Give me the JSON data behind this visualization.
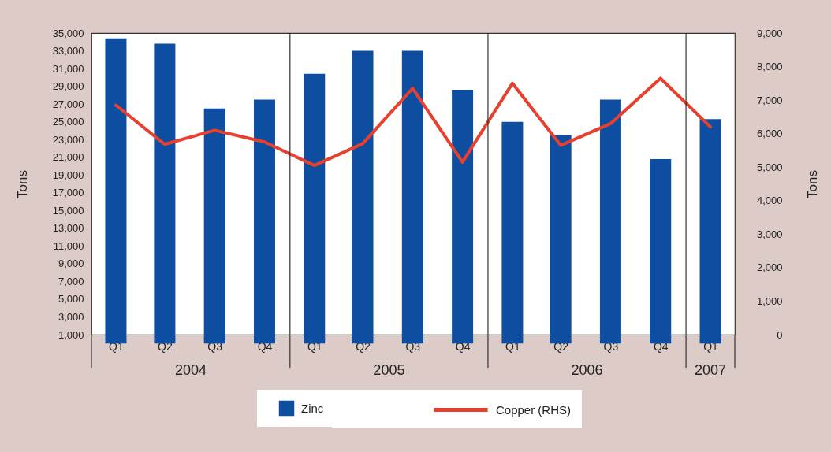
{
  "chart_data": {
    "type": "bar",
    "x": [
      "2004-02-15",
      "2004-05-15",
      "2004-08-15",
      "2004-11-15",
      "2005-02-15",
      "2005-05-15",
      "2005-08-15",
      "2005-11-15",
      "2006-02-15",
      "2006-05-15",
      "2006-08-15",
      "2006-11-15",
      "2007-02-15"
    ],
    "xlim": [
      "2004-01-01",
      "2007-04-01"
    ],
    "xticks": [
      {
        "value": "2004-02-15",
        "label": "Q1"
      },
      {
        "value": "2004-05-15",
        "label": "Q2"
      },
      {
        "value": "2004-08-15",
        "label": "Q3"
      },
      {
        "value": "2004-11-15",
        "label": "Q4"
      },
      {
        "value": "2005-02-15",
        "label": "Q1"
      },
      {
        "value": "2005-05-15",
        "label": "Q2"
      },
      {
        "value": "2005-08-15",
        "label": "Q3"
      },
      {
        "value": "2005-11-15",
        "label": "Q4"
      },
      {
        "value": "2006-02-15",
        "label": "Q1"
      },
      {
        "value": "2006-05-15",
        "label": "Q2"
      },
      {
        "value": "2006-08-15",
        "label": "Q3"
      },
      {
        "value": "2006-11-15",
        "label": "Q4"
      },
      {
        "value": "2007-02-15",
        "label": "Q1"
      }
    ],
    "series": [
      {
        "name": "Zinc",
        "color": "#0d4ea0",
        "values": [
          34400,
          33800,
          26500,
          27500,
          30400,
          33000,
          33000,
          28600,
          25000,
          23500,
          27500,
          20800,
          25300
        ]
      },
      {
        "name": "Copper (RHS)",
        "type": "line",
        "axis": "y2",
        "color": "#e8402f",
        "values": [
          6850,
          5680,
          6100,
          5750,
          5050,
          5700,
          7350,
          5150,
          7500,
          5650,
          6300,
          7650,
          6200
        ]
      }
    ],
    "ylabel": "Tons",
    "y2label": "Tons",
    "ylim": [
      1000,
      35000
    ],
    "yticks": [
      {
        "value": 1000,
        "label": "1,000"
      },
      {
        "value": 3000,
        "label": "3,000"
      },
      {
        "value": 5000,
        "label": "5,000"
      },
      {
        "value": 7000,
        "label": "7,000"
      },
      {
        "value": 9000,
        "label": "9,000"
      },
      {
        "value": 11000,
        "label": "11,000"
      },
      {
        "value": 13000,
        "label": "13,000"
      },
      {
        "value": 15000,
        "label": "15,000"
      },
      {
        "value": 17000,
        "label": "17,000"
      },
      {
        "value": 19000,
        "label": "19,000"
      },
      {
        "value": 21000,
        "label": "21,000"
      },
      {
        "value": 23000,
        "label": "23,000"
      },
      {
        "value": 25000,
        "label": "25,000"
      },
      {
        "value": 27000,
        "label": "27,000"
      },
      {
        "value": 29000,
        "label": "29,000"
      },
      {
        "value": 31000,
        "label": "31,000"
      },
      {
        "value": 33000,
        "label": "33,000"
      },
      {
        "value": 35000,
        "label": "35,000"
      }
    ],
    "y2lim": [
      0,
      9000
    ],
    "y2ticks": [
      0,
      {
        "value": 1000,
        "label": "1,000"
      },
      {
        "value": 2000,
        "label": "2,000"
      },
      {
        "value": 3000,
        "label": "3,000"
      },
      {
        "value": 4000,
        "label": "4,000"
      },
      {
        "value": 5000,
        "label": "5,000"
      },
      {
        "value": 6000,
        "label": "6,000"
      },
      {
        "value": 7000,
        "label": "7,000"
      },
      {
        "value": 8000,
        "label": "8,000"
      },
      {
        "value": 9000,
        "label": "9,000"
      }
    ],
    "ref_lines": [
      {
        "axis": "x",
        "value": "2005-01-01",
        "color": "#333333"
      },
      {
        "axis": "x",
        "value": "2006-01-01",
        "color": "#333333"
      },
      {
        "axis": "x",
        "value": "2007-01-01",
        "color": "#333333"
      }
    ],
    "annotations": [
      "2004",
      "2005",
      "2006",
      "2007"
    ],
    "legend": "bottom",
    "grid": false,
    "line_style": "solid"
  }
}
